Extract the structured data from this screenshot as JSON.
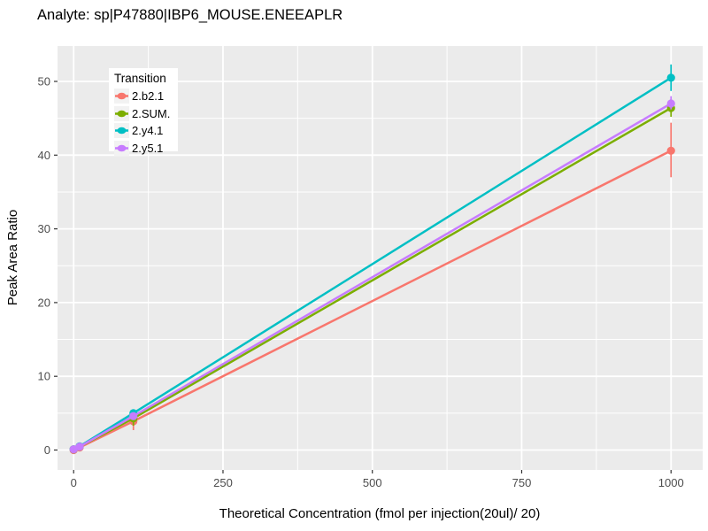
{
  "chart_data": {
    "type": "line",
    "title": "Analyte: sp|P47880|IBP6_MOUSE.ENEEAPLR",
    "xlabel": "Theoretical Concentration (fmol per injection(20ul)/ 20)",
    "ylabel": "Peak Area Ratio",
    "legend_title": "Transition",
    "legend_position": "top-left-inside",
    "grid": true,
    "panel_fill": "#EBEBEB",
    "grid_color": "#FFFFFF",
    "tick_color": "#333333",
    "tick_label_color": "#4D4D4D",
    "xlim": [
      -27,
      1053
    ],
    "ylim": [
      -2.7,
      54.8
    ],
    "x_ticks": [
      0,
      250,
      500,
      750,
      1000
    ],
    "y_ticks": [
      0,
      10,
      20,
      30,
      40,
      50
    ],
    "x_minor": [
      125,
      375,
      625,
      875
    ],
    "y_minor": [
      5,
      15,
      25,
      35,
      45
    ],
    "series": [
      {
        "name": "2.b2.1",
        "color": "#F8766D",
        "x": [
          0,
          10,
          100,
          1000
        ],
        "y": [
          0.0,
          0.35,
          3.9,
          40.6
        ],
        "error_bars": [
          {
            "x": 100,
            "low": 2.7,
            "high": 4.9
          },
          {
            "x": 1000,
            "low": 37.0,
            "high": 44.4
          }
        ]
      },
      {
        "name": "2.SUM.",
        "color": "#7CAE00",
        "x": [
          0,
          10,
          100,
          1000
        ],
        "y": [
          0.1,
          0.45,
          4.3,
          46.4
        ],
        "error_bars": [
          {
            "x": 100,
            "low": 3.3,
            "high": 4.9
          },
          {
            "x": 1000,
            "low": 45.2,
            "high": 47.6
          }
        ]
      },
      {
        "name": "2.y4.1",
        "color": "#00BFC4",
        "x": [
          0,
          10,
          100,
          1000
        ],
        "y": [
          0.1,
          0.5,
          5.0,
          50.5
        ],
        "error_bars": [
          {
            "x": 1000,
            "low": 48.7,
            "high": 52.3
          }
        ]
      },
      {
        "name": "2.y5.1",
        "color": "#C77CFF",
        "x": [
          0,
          10,
          100,
          1000
        ],
        "y": [
          0.1,
          0.45,
          4.6,
          47.0
        ],
        "error_bars": [
          {
            "x": 1000,
            "low": 46.2,
            "high": 48.0
          }
        ]
      }
    ]
  }
}
